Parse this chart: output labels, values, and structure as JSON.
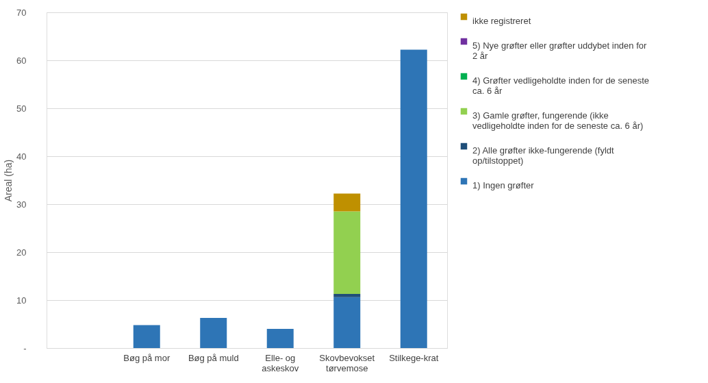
{
  "chart_data": {
    "type": "bar",
    "stacked": true,
    "ylabel": "Areal (ha)",
    "categories": [
      null,
      "Bøg på mor",
      "Bøg på muld",
      "Elle- og askeskov",
      "Skovbevokset tørvemose",
      "Stilkege-krat"
    ],
    "series": [
      {
        "name": "1) Ingen grøfter",
        "color": "#2e75b6",
        "values": [
          0,
          4.8,
          6.3,
          4.0,
          10.6,
          62.2
        ]
      },
      {
        "name": "2) Alle grøfter ikke-fungerende (fyldt op/tilstoppet)",
        "color": "#1f4e79",
        "values": [
          0,
          0,
          0,
          0,
          0.7,
          0
        ]
      },
      {
        "name": "3) Gamle grøfter, fungerende (ikke vedligeholdte inden for de seneste ca. 6 år)",
        "color": "#92d050",
        "values": [
          0,
          0,
          0,
          0,
          17.2,
          0
        ]
      },
      {
        "name": "4) Grøfter vedligeholdte inden for de seneste ca. 6 år",
        "color": "#00b050",
        "values": [
          0,
          0,
          0,
          0,
          0,
          0
        ]
      },
      {
        "name": "5) Nye grøfter eller grøfter uddybet inden for 2 år",
        "color": "#7030a0",
        "values": [
          0,
          0,
          0,
          0,
          0,
          0
        ]
      },
      {
        "name": "ikke registreret",
        "color": "#bf9000",
        "values": [
          0,
          0,
          0,
          0,
          3.7,
          0
        ]
      }
    ],
    "ylim": [
      0,
      70
    ],
    "yticks": [
      {
        "value": 0,
        "label": "-"
      },
      10,
      20,
      30,
      40,
      50,
      60,
      70
    ],
    "grid": "y",
    "legend": "right"
  }
}
